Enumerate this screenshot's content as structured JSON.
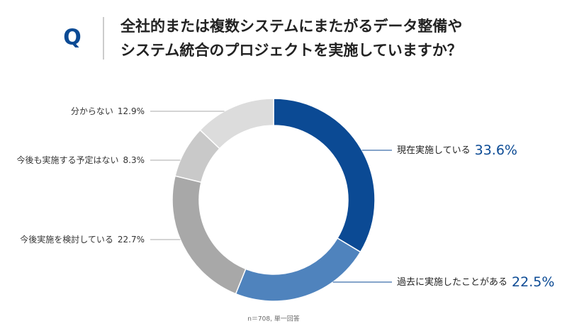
{
  "chart_data": {
    "type": "pie",
    "badge": "Q",
    "title_lines": [
      "全社的または複数システムにまたがるデータ整備や",
      "システム統合のプロジェクトを実施していますか？"
    ],
    "categories": [
      "現在実施している",
      "過去に実施したことがある",
      "今後実施を検討している",
      "今後も実施する予定はない",
      "分からない"
    ],
    "values": [
      33.6,
      22.5,
      22.7,
      8.3,
      12.9
    ],
    "value_labels": [
      "33.6%",
      "22.5%",
      "22.7%",
      "8.3%",
      "12.9%"
    ],
    "colors": [
      "#0b4a94",
      "#4f83bd",
      "#a8a8a8",
      "#c9c9c9",
      "#dcdcdc"
    ],
    "note": "n＝708, 単一回答"
  }
}
